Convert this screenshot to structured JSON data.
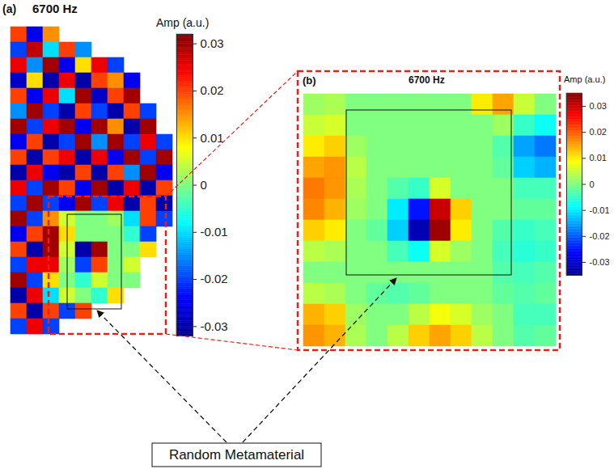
{
  "chart_data": [
    {
      "type": "heatmap",
      "panel_label": "(a)",
      "title": "6700 Hz",
      "tick_labels": false,
      "annotations": [
        "Random Metamaterial"
      ],
      "colorbar": {
        "label": "Amp (a.u.)",
        "range": [
          -0.032,
          0.032
        ],
        "ticks": [
          -0.03,
          -0.02,
          -0.01,
          0,
          0.01,
          0.02,
          0.03
        ]
      },
      "cells": [
        [
          0.02,
          -0.025,
          0.015,
          null,
          null,
          null,
          null,
          null,
          null,
          null
        ],
        [
          -0.02,
          0.028,
          -0.01,
          0.02,
          -0.015,
          null,
          null,
          null,
          null,
          null
        ],
        [
          0.025,
          -0.015,
          0.03,
          -0.025,
          0.01,
          0.025,
          -0.02,
          null,
          null,
          null
        ],
        [
          -0.028,
          0.01,
          -0.03,
          0.025,
          -0.03,
          0.02,
          0.015,
          -0.025,
          null,
          null
        ],
        [
          0.02,
          -0.025,
          0.025,
          -0.01,
          0.03,
          -0.028,
          0.02,
          0.03,
          null,
          null
        ],
        [
          -0.015,
          0.03,
          -0.02,
          -0.03,
          0.02,
          -0.02,
          -0.03,
          0.02,
          -0.02,
          null
        ],
        [
          0.03,
          -0.02,
          0.025,
          0.03,
          -0.025,
          0.03,
          0.015,
          -0.03,
          0.03,
          null
        ],
        [
          -0.025,
          0.02,
          -0.03,
          -0.02,
          0.03,
          -0.015,
          0.03,
          -0.02,
          0.025,
          -0.02
        ],
        [
          0.02,
          -0.03,
          0.02,
          0.025,
          -0.03,
          0.025,
          -0.025,
          0.03,
          -0.02,
          0.03
        ],
        [
          -0.03,
          0.025,
          -0.025,
          -0.03,
          0.02,
          -0.03,
          0.02,
          -0.015,
          0.03,
          -0.025
        ],
        [
          0.025,
          -0.02,
          0.03,
          0.02,
          -0.025,
          0.03,
          -0.03,
          0.025,
          -0.03,
          0.02
        ],
        [
          -0.02,
          0.03,
          -0.02,
          -0.025,
          0.03,
          -0.02,
          0.025,
          -0.03,
          0.02,
          -0.03
        ],
        [
          0.03,
          -0.02,
          0.015,
          0.005,
          0,
          0,
          0.002,
          -0.01,
          0.02,
          -0.02
        ],
        [
          -0.025,
          0.02,
          0.03,
          0.01,
          0,
          0,
          0,
          -0.005,
          -0.02,
          null
        ],
        [
          0.02,
          -0.03,
          0.03,
          0.005,
          -0.03,
          0.03,
          0,
          0,
          0.01,
          null
        ],
        [
          -0.02,
          0.025,
          0.025,
          0.002,
          -0.02,
          0.02,
          0,
          0.005,
          null,
          null
        ],
        [
          0.03,
          -0.02,
          0.01,
          0,
          -0.005,
          0.005,
          0,
          0,
          null,
          null
        ],
        [
          -0.03,
          0.025,
          -0.01,
          0.005,
          0,
          -0.005,
          0.01,
          null,
          null,
          null
        ],
        [
          0.02,
          -0.03,
          0.02,
          -0.02,
          0.02,
          null,
          null,
          null,
          null,
          null
        ],
        [
          -0.02,
          0.025,
          -0.02,
          null,
          null,
          null,
          null,
          null,
          null,
          null
        ]
      ]
    },
    {
      "type": "heatmap",
      "panel_label": "(b)",
      "title": "6700 Hz",
      "tick_labels": false,
      "colorbar": {
        "label": "Amp (a.u.)",
        "range": [
          -0.035,
          0.035
        ],
        "ticks": [
          -0.03,
          -0.02,
          -0.01,
          0,
          0.01,
          0.02,
          0.03
        ]
      },
      "cells": [
        [
          0.002,
          0.003,
          0,
          0,
          0,
          0,
          0,
          0,
          0.01,
          0.015,
          0.005,
          0
        ],
        [
          0.005,
          0.006,
          0,
          0,
          0,
          0,
          0,
          0,
          0,
          0.002,
          -0.005,
          -0.008
        ],
        [
          0.01,
          0.012,
          0.002,
          0,
          0,
          0,
          0,
          0,
          0,
          -0.003,
          -0.015,
          -0.018
        ],
        [
          0.015,
          0.016,
          0.004,
          0,
          0,
          0,
          0,
          0,
          0,
          -0.002,
          -0.012,
          -0.014
        ],
        [
          0.018,
          0.016,
          0.003,
          0,
          -0.003,
          -0.005,
          0.006,
          0,
          0,
          0,
          -0.004,
          -0.004
        ],
        [
          0.017,
          0.014,
          0.002,
          0,
          -0.01,
          -0.025,
          0.03,
          0.012,
          0,
          0,
          -0.002,
          -0.002
        ],
        [
          0.012,
          0.01,
          0,
          -0.002,
          -0.012,
          -0.032,
          0.033,
          0.01,
          0,
          -0.003,
          -0.005,
          -0.004
        ],
        [
          0.004,
          0.003,
          0,
          0,
          -0.004,
          -0.008,
          0.006,
          0.002,
          0,
          -0.004,
          -0.006,
          -0.005
        ],
        [
          0,
          0,
          0,
          0,
          0,
          0,
          0,
          0,
          0,
          -0.003,
          -0.004,
          -0.003
        ],
        [
          0.004,
          0.003,
          0,
          -0.002,
          -0.003,
          -0.002,
          0,
          0,
          0,
          -0.002,
          -0.003,
          -0.002
        ],
        [
          0.014,
          0.012,
          0.002,
          0,
          0,
          0.004,
          0.008,
          0.006,
          0.002,
          0,
          -0.004,
          -0.004
        ],
        [
          0.016,
          0.014,
          0.003,
          0,
          0.004,
          0.012,
          0.015,
          0.012,
          0.004,
          0,
          -0.003,
          -0.002
        ]
      ]
    }
  ]
}
